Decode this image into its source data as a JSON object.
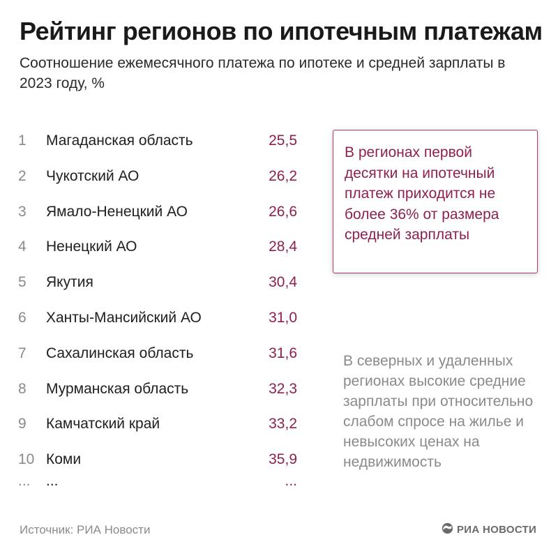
{
  "header": {
    "title": "Рейтинг регионов по ипотечным платежам",
    "subtitle": "Соотношение ежемесячного платежа по ипотеке и средней зарплаты в 2023 году, %"
  },
  "ranking": [
    {
      "rank": "1",
      "region": "Магаданская область",
      "value": "25,5"
    },
    {
      "rank": "2",
      "region": "Чукотский АО",
      "value": "26,2"
    },
    {
      "rank": "3",
      "region": "Ямало-Ненецкий АО",
      "value": "26,6"
    },
    {
      "rank": "4",
      "region": "Ненецкий АО",
      "value": "28,4"
    },
    {
      "rank": "5",
      "region": "Якутия",
      "value": "30,4"
    },
    {
      "rank": "6",
      "region": "Ханты-Мансийский АО",
      "value": "31,0"
    },
    {
      "rank": "7",
      "region": "Сахалинская область",
      "value": "31,6"
    },
    {
      "rank": "8",
      "region": "Мурманская область",
      "value": "32,3"
    },
    {
      "rank": "9",
      "region": "Камчатский край",
      "value": "33,2"
    },
    {
      "rank": "10",
      "region": "Коми",
      "value": "35,9"
    }
  ],
  "continuation": {
    "rank": "...",
    "region": "...",
    "value": "..."
  },
  "callout": {
    "text": "В регионах первой десятки на ипотечный платеж приходится не более 36% от размера средней зарплаты"
  },
  "note": {
    "text": "В северных и удаленных регионах высокие средние зарплаты при относительно слабом спросе на жилье и невысоких ценах на недвижимость"
  },
  "footer": {
    "source": "Источник: РИА Новости",
    "logo_text": "РИА НОВОСТИ"
  },
  "colors": {
    "accent": "#8e2050",
    "accent_border": "#b8365f",
    "muted": "#8a8a8a",
    "text": "#1e1e1e"
  }
}
